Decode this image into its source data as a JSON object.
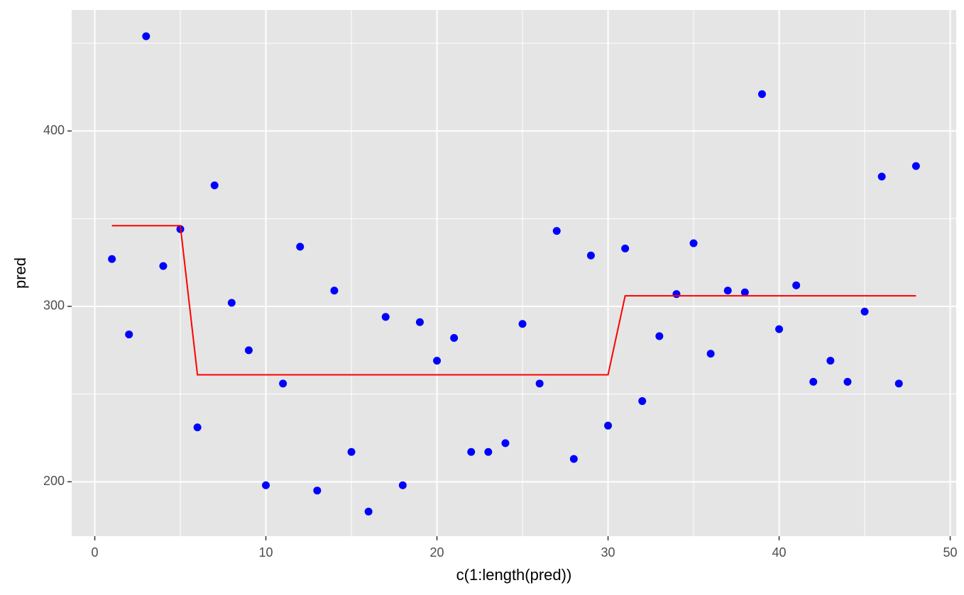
{
  "chart_data": {
    "type": "scatter",
    "x_label": "c(1:length(pred))",
    "y_label": "pred",
    "x": [
      1,
      2,
      3,
      4,
      5,
      6,
      7,
      8,
      9,
      10,
      11,
      12,
      13,
      14,
      15,
      16,
      17,
      18,
      19,
      20,
      21,
      22,
      23,
      24,
      25,
      26,
      27,
      28,
      29,
      30,
      31,
      32,
      33,
      34,
      35,
      36,
      37,
      38,
      39,
      40,
      41,
      42,
      43,
      44,
      45,
      46,
      47,
      48
    ],
    "series": [
      {
        "color": "#0000ff",
        "style": "point",
        "values": [
          327,
          284,
          454,
          323,
          344,
          231,
          369,
          302,
          275,
          198,
          256,
          334,
          195,
          309,
          217,
          183,
          294,
          198,
          291,
          269,
          282,
          217,
          217,
          222,
          290,
          256,
          343,
          213,
          329,
          232,
          333,
          246,
          283,
          307,
          336,
          273,
          309,
          308,
          421,
          287,
          312,
          257,
          269,
          257,
          297,
          374,
          256,
          380
        ]
      },
      {
        "color": "#ff0000",
        "style": "line",
        "values": [
          346,
          346,
          346,
          346,
          346,
          261,
          261,
          261,
          261,
          261,
          261,
          261,
          261,
          261,
          261,
          261,
          261,
          261,
          261,
          261,
          261,
          261,
          261,
          261,
          261,
          261,
          261,
          261,
          261,
          261,
          306,
          306,
          306,
          306,
          306,
          306,
          306,
          306,
          306,
          306,
          306,
          306,
          306,
          306,
          306,
          306,
          306,
          306
        ]
      }
    ],
    "xlim": [
      -1.35,
      50.35
    ],
    "ylim": [
      169,
      469
    ],
    "xticks": [
      0,
      10,
      20,
      30,
      40,
      50
    ],
    "yticks": [
      200,
      300,
      400
    ],
    "grid": true,
    "panel_color": "#e5e5e5"
  }
}
